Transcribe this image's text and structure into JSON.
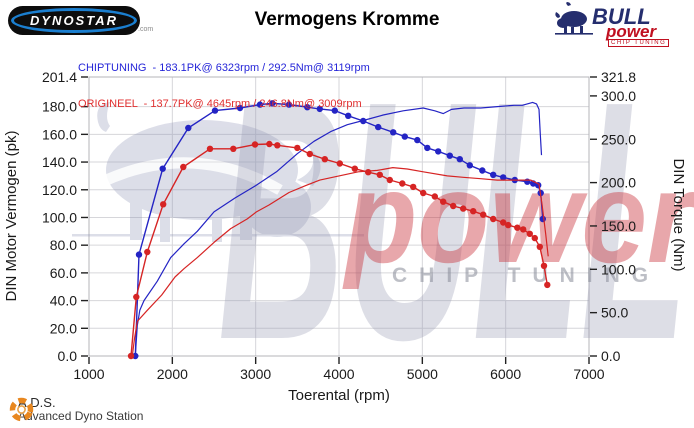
{
  "header": {
    "title": "Vermogens Kromme",
    "dynostar_text": "DYNOSTAR",
    "dynostar_domain": ".com",
    "bull_logo": {
      "bull": "BULL",
      "power": "power",
      "chip": "CHIP TUNING"
    }
  },
  "legend": {
    "chiptuning": {
      "label": "CHIPTUNING",
      "text": "CHIPTUNING  - 183.1PK@ 6323rpm / 292.5Nm@ 3119rpm",
      "color": "#2525d8"
    },
    "origineel": {
      "label": "ORIGINEEL",
      "text": "ORIGINEEL  - 137.7PK@ 4645rpm / 246.8Nm@ 3009rpm",
      "color": "#e03030"
    }
  },
  "watermark": {
    "bull": "BULL",
    "power": "power",
    "chip": "CHIP TUNING"
  },
  "footer": {
    "ads_abbr": "A.D.S.",
    "ads_full": "Advanced Dyno Station"
  },
  "chart_data": {
    "type": "line",
    "title": "Vermogens Kromme",
    "xlabel": "Toerental (rpm)",
    "ylabel_left": "DIN Motor Vermogen (pk)",
    "ylabel_right": "DIN Torque (Nm)",
    "xlim": [
      1000,
      7000
    ],
    "ylim_left": [
      0,
      201.4
    ],
    "ylim_right": [
      0,
      321.8
    ],
    "x_ticks": [
      1000,
      2000,
      3000,
      4000,
      5000,
      6000,
      7000
    ],
    "y_ticks_left": [
      0,
      20,
      40,
      60,
      80,
      100,
      120,
      140,
      160,
      180,
      201.4
    ],
    "y_ticks_right": [
      0,
      50,
      100,
      150,
      200,
      250,
      300,
      321.8
    ],
    "grid": true,
    "peaks": {
      "chiptuning_power": "183.1PK@ 6323rpm",
      "chiptuning_torque": "292.5Nm@ 3119rpm",
      "origineel_power": "137.7PK@ 4645rpm",
      "origineel_torque": "246.8Nm@ 3009rpm"
    },
    "series": [
      {
        "name": "CHIPTUNING vermogen (pk)",
        "axis": "left",
        "color": "#2424c4",
        "markers": false,
        "points": [
          [
            1555,
            0
          ],
          [
            1580,
            22
          ],
          [
            1610,
            33
          ],
          [
            1660,
            40
          ],
          [
            1820,
            54
          ],
          [
            1980,
            71
          ],
          [
            2140,
            81
          ],
          [
            2300,
            90
          ],
          [
            2500,
            104
          ],
          [
            2750,
            114
          ],
          [
            3000,
            123
          ],
          [
            3250,
            133
          ],
          [
            3500,
            146
          ],
          [
            3700,
            155
          ],
          [
            3900,
            162
          ],
          [
            4100,
            167
          ],
          [
            4290,
            170
          ],
          [
            4530,
            174
          ],
          [
            4770,
            177
          ],
          [
            5010,
            179
          ],
          [
            5150,
            177
          ],
          [
            5250,
            175
          ],
          [
            5350,
            178
          ],
          [
            5500,
            179
          ],
          [
            5700,
            179
          ],
          [
            5900,
            180
          ],
          [
            6100,
            181
          ],
          [
            6200,
            181
          ],
          [
            6323,
            183.1
          ],
          [
            6370,
            182
          ],
          [
            6400,
            178
          ],
          [
            6415,
            160
          ],
          [
            6430,
            145
          ]
        ]
      },
      {
        "name": "CHIPTUNING koppel (Nm)",
        "axis": "right",
        "color": "#2424c4",
        "markers": true,
        "points": [
          [
            1555,
            0
          ],
          [
            1600,
            117
          ],
          [
            1884,
            216
          ],
          [
            2192,
            263
          ],
          [
            2512,
            283
          ],
          [
            2812,
            286
          ],
          [
            3052,
            290
          ],
          [
            3200,
            291.5
          ],
          [
            3400,
            290
          ],
          [
            3620,
            287
          ],
          [
            3770,
            285
          ],
          [
            3950,
            283
          ],
          [
            4110,
            277
          ],
          [
            4290,
            271
          ],
          [
            4470,
            264
          ],
          [
            4650,
            258
          ],
          [
            4790,
            253
          ],
          [
            4940,
            249
          ],
          [
            5060,
            240
          ],
          [
            5190,
            236
          ],
          [
            5330,
            231
          ],
          [
            5450,
            227
          ],
          [
            5570,
            220
          ],
          [
            5720,
            214
          ],
          [
            5850,
            209
          ],
          [
            5970,
            206
          ],
          [
            6110,
            203
          ],
          [
            6260,
            201
          ],
          [
            6330,
            199
          ],
          [
            6390,
            197
          ],
          [
            6420,
            188
          ],
          [
            6445,
            158
          ]
        ]
      },
      {
        "name": "ORIGINEEL vermogen (pk)",
        "axis": "left",
        "color": "#d62424",
        "markers": false,
        "points": [
          [
            1520,
            0
          ],
          [
            1545,
            12
          ],
          [
            1580,
            25
          ],
          [
            1700,
            33
          ],
          [
            1872,
            44
          ],
          [
            2032,
            57
          ],
          [
            2140,
            63
          ],
          [
            2300,
            71
          ],
          [
            2500,
            82
          ],
          [
            2700,
            92
          ],
          [
            2900,
            99
          ],
          [
            3009,
            104
          ],
          [
            3160,
            109
          ],
          [
            3400,
            118
          ],
          [
            3600,
            123
          ],
          [
            3770,
            127
          ],
          [
            4000,
            130
          ],
          [
            4230,
            133
          ],
          [
            4460,
            134
          ],
          [
            4645,
            136
          ],
          [
            4820,
            135
          ],
          [
            5010,
            133
          ],
          [
            5300,
            130
          ],
          [
            5490,
            129
          ],
          [
            5700,
            128
          ],
          [
            5900,
            127
          ],
          [
            6100,
            127
          ],
          [
            6300,
            127
          ],
          [
            6400,
            124
          ],
          [
            6440,
            108
          ],
          [
            6480,
            88
          ],
          [
            6510,
            72
          ]
        ]
      },
      {
        "name": "ORIGINEEL koppel (Nm)",
        "axis": "right",
        "color": "#d62424",
        "markers": true,
        "points": [
          [
            1504,
            0
          ],
          [
            1568,
            68
          ],
          [
            1700,
            120
          ],
          [
            1890,
            175
          ],
          [
            2132,
            218
          ],
          [
            2452,
            239
          ],
          [
            2732,
            239
          ],
          [
            2992,
            244
          ],
          [
            3164,
            244.5
          ],
          [
            3260,
            243
          ],
          [
            3500,
            240
          ],
          [
            3650,
            233
          ],
          [
            3830,
            227
          ],
          [
            4010,
            222
          ],
          [
            4190,
            216
          ],
          [
            4350,
            212
          ],
          [
            4490,
            209
          ],
          [
            4610,
            203
          ],
          [
            4760,
            199
          ],
          [
            4890,
            195
          ],
          [
            5010,
            188
          ],
          [
            5150,
            184
          ],
          [
            5250,
            178
          ],
          [
            5370,
            173
          ],
          [
            5490,
            170
          ],
          [
            5610,
            167
          ],
          [
            5730,
            163
          ],
          [
            5850,
            158
          ],
          [
            5970,
            154
          ],
          [
            6030,
            151
          ],
          [
            6140,
            148
          ],
          [
            6210,
            146
          ],
          [
            6290,
            141
          ],
          [
            6350,
            136
          ],
          [
            6410,
            126
          ],
          [
            6460,
            104
          ],
          [
            6500,
            82
          ]
        ]
      }
    ]
  }
}
